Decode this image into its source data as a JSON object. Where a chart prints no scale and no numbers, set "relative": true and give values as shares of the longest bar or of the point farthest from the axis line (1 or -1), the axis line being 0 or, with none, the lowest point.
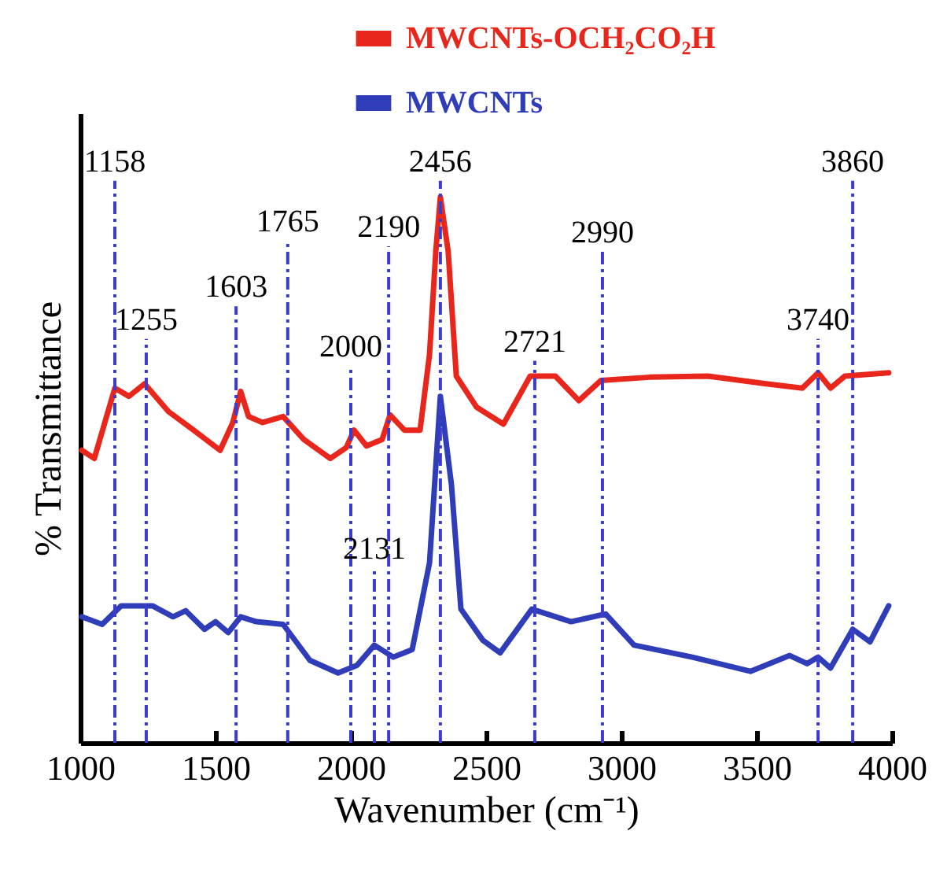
{
  "chart_data": {
    "type": "line",
    "relative": true,
    "xlabel": "Wavenumber (cm⁻¹)",
    "ylabel": "% Transmittance",
    "xlim": [
      1000,
      4000
    ],
    "xticks": [
      1000,
      1500,
      2000,
      2500,
      3000,
      3500,
      4000
    ],
    "legend": "top",
    "line_style": "solid",
    "marker": "none",
    "series": [
      {
        "name": "MWCNTs-OCH₂CO₂H",
        "color": "#e8261c",
        "x": [
          1006,
          1052,
          1128,
          1180,
          1238,
          1326,
          1419,
          1517,
          1564,
          1593,
          1622,
          1674,
          1750,
          1826,
          1924,
          1983,
          2012,
          2058,
          2116,
          2145,
          2198,
          2256,
          2291,
          2314,
          2331,
          2360,
          2390,
          2465,
          2564,
          2663,
          2756,
          2843,
          2924,
          3105,
          3320,
          3535,
          3669,
          3727,
          3773,
          3826,
          3988
        ],
        "values": [
          0.536,
          0.521,
          0.65,
          0.635,
          0.658,
          0.607,
          0.573,
          0.536,
          0.587,
          0.644,
          0.598,
          0.587,
          0.598,
          0.556,
          0.521,
          0.541,
          0.573,
          0.544,
          0.556,
          0.601,
          0.573,
          0.573,
          0.712,
          0.9,
          1.0,
          0.9,
          0.672,
          0.615,
          0.584,
          0.672,
          0.672,
          0.627,
          0.664,
          0.67,
          0.672,
          0.658,
          0.65,
          0.678,
          0.65,
          0.672,
          0.678
        ]
      },
      {
        "name": "MWCNTs",
        "color": "#2f3db8",
        "x": [
          1006,
          1081,
          1151,
          1267,
          1343,
          1390,
          1459,
          1500,
          1547,
          1593,
          1651,
          1750,
          1849,
          1953,
          2023,
          2087,
          2157,
          2227,
          2291,
          2331,
          2372,
          2407,
          2488,
          2552,
          2669,
          2814,
          2942,
          3047,
          3262,
          3477,
          3622,
          3686,
          3727,
          3773,
          3855,
          3919,
          3988
        ],
        "values": [
          0.231,
          0.217,
          0.251,
          0.251,
          0.231,
          0.242,
          0.208,
          0.222,
          0.202,
          0.231,
          0.222,
          0.217,
          0.151,
          0.128,
          0.142,
          0.179,
          0.157,
          0.171,
          0.33,
          0.635,
          0.473,
          0.245,
          0.188,
          0.165,
          0.245,
          0.222,
          0.236,
          0.179,
          0.157,
          0.131,
          0.16,
          0.145,
          0.157,
          0.137,
          0.208,
          0.185,
          0.251
        ]
      }
    ],
    "ref_lines": [
      {
        "axis": "x",
        "value": 1128,
        "color": "#3b3bcc",
        "line_style": "dashdot"
      },
      {
        "axis": "x",
        "value": 1244,
        "color": "#3b3bcc",
        "line_style": "dashdot"
      },
      {
        "axis": "x",
        "value": 1576,
        "color": "#3b3bcc",
        "line_style": "dashdot"
      },
      {
        "axis": "x",
        "value": 1767,
        "color": "#3b3bcc",
        "line_style": "dashdot"
      },
      {
        "axis": "x",
        "value": 2000,
        "color": "#3b3bcc",
        "line_style": "dashdot"
      },
      {
        "axis": "x",
        "value": 2140,
        "color": "#3b3bcc",
        "line_style": "dashdot"
      },
      {
        "axis": "x",
        "value": 2331,
        "color": "#3b3bcc",
        "line_style": "dashdot"
      },
      {
        "axis": "x",
        "value": 2680,
        "color": "#3b3bcc",
        "line_style": "dashdot"
      },
      {
        "axis": "x",
        "value": 2930,
        "color": "#3b3bcc",
        "line_style": "dashdot"
      },
      {
        "axis": "x",
        "value": 3727,
        "color": "#3b3bcc",
        "line_style": "dashdot"
      },
      {
        "axis": "x",
        "value": 3855,
        "color": "#3b3bcc",
        "line_style": "dashdot"
      },
      {
        "axis": "x",
        "value": 2087,
        "color": "#3b3bcc",
        "line_style": "dashdot"
      }
    ],
    "annotations": [
      {
        "text": "1158",
        "x": 1128,
        "y": 1.03
      },
      {
        "text": "1255",
        "x": 1244,
        "y": 0.74
      },
      {
        "text": "1603",
        "x": 1576,
        "y": 0.8
      },
      {
        "text": "1765",
        "x": 1767,
        "y": 0.92
      },
      {
        "text": "2000",
        "x": 2000,
        "y": 0.69
      },
      {
        "text": "2190",
        "x": 2140,
        "y": 0.91
      },
      {
        "text": "2456",
        "x": 2331,
        "y": 1.03
      },
      {
        "text": "2721",
        "x": 2680,
        "y": 0.7
      },
      {
        "text": "2990",
        "x": 2930,
        "y": 0.9
      },
      {
        "text": "3740",
        "x": 3727,
        "y": 0.74
      },
      {
        "text": "3860",
        "x": 3855,
        "y": 1.03
      },
      {
        "text": "2131",
        "x": 2087,
        "y": 0.32
      }
    ]
  }
}
